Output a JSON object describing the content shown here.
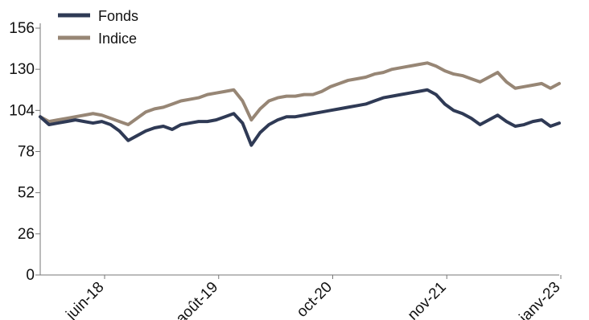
{
  "chart_data": {
    "type": "line",
    "title": "",
    "xlabel": "",
    "ylabel": "",
    "x_ticks": [
      "juin-18",
      "août-19",
      "oct-20",
      "nov-21",
      "janv-23"
    ],
    "y_ticks": [
      0,
      26,
      52,
      78,
      104,
      130,
      156
    ],
    "ylim": [
      0,
      156
    ],
    "xlim": [
      0,
      59
    ],
    "grid": false,
    "legend": "top-left",
    "series": [
      {
        "name": "Fonds",
        "color": "#2f3a55",
        "x": [
          0,
          1,
          2,
          3,
          4,
          5,
          6,
          7,
          8,
          9,
          10,
          11,
          12,
          13,
          14,
          15,
          16,
          17,
          18,
          19,
          20,
          21,
          22,
          23,
          24,
          25,
          26,
          27,
          28,
          29,
          30,
          31,
          32,
          33,
          34,
          35,
          36,
          37,
          38,
          39,
          40,
          41,
          42,
          43,
          44,
          45,
          46,
          47,
          48,
          49,
          50,
          51,
          52,
          53,
          54,
          55,
          56,
          57,
          58,
          59
        ],
        "y": [
          100,
          95,
          96,
          97,
          98,
          97,
          96,
          97,
          95,
          91,
          85,
          88,
          91,
          93,
          94,
          92,
          95,
          96,
          97,
          97,
          98,
          100,
          102,
          96,
          82,
          90,
          95,
          98,
          100,
          100,
          101,
          102,
          103,
          104,
          105,
          106,
          107,
          108,
          110,
          112,
          113,
          114,
          115,
          116,
          117,
          114,
          108,
          104,
          102,
          99,
          95,
          98,
          101,
          97,
          94,
          95,
          97,
          98,
          94,
          96
        ]
      },
      {
        "name": "Indice",
        "color": "#978675",
        "x": [
          0,
          1,
          2,
          3,
          4,
          5,
          6,
          7,
          8,
          9,
          10,
          11,
          12,
          13,
          14,
          15,
          16,
          17,
          18,
          19,
          20,
          21,
          22,
          23,
          24,
          25,
          26,
          27,
          28,
          29,
          30,
          31,
          32,
          33,
          34,
          35,
          36,
          37,
          38,
          39,
          40,
          41,
          42,
          43,
          44,
          45,
          46,
          47,
          48,
          49,
          50,
          51,
          52,
          53,
          54,
          55,
          56,
          57,
          58,
          59
        ],
        "y": [
          100,
          97,
          98,
          99,
          100,
          101,
          102,
          101,
          99,
          97,
          95,
          99,
          103,
          105,
          106,
          108,
          110,
          111,
          112,
          114,
          115,
          116,
          117,
          110,
          98,
          105,
          110,
          112,
          113,
          113,
          114,
          114,
          116,
          119,
          121,
          123,
          124,
          125,
          127,
          128,
          130,
          131,
          132,
          133,
          134,
          132,
          129,
          127,
          126,
          124,
          122,
          125,
          128,
          122,
          118,
          119,
          120,
          121,
          118,
          121
        ]
      }
    ]
  }
}
